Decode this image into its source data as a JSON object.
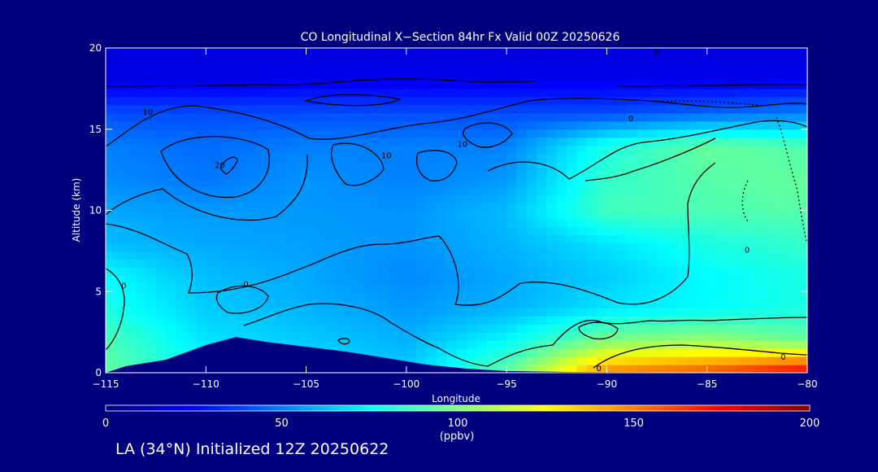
{
  "chart_data": {
    "type": "heatmap",
    "title": "CO Longitudinal X−Section 84hr  Fx Valid 00Z 20250626",
    "xlabel": "Longitude",
    "ylabel": "Altitude (km)",
    "xlim": [
      -115,
      -80
    ],
    "ylim": [
      0,
      20
    ],
    "x_ticks": [
      -115,
      -110,
      -105,
      -100,
      -95,
      -90,
      -85,
      -80
    ],
    "x_tick_labels": [
      "−115",
      "−110",
      "−105",
      "−100",
      "−95",
      "−90",
      "−85",
      "−80"
    ],
    "y_ticks": [
      0,
      5,
      10,
      15,
      20
    ],
    "y_tick_labels": [
      "0",
      "5",
      "10",
      "15",
      "20"
    ],
    "colorbar": {
      "label": "(ppbv)",
      "range": [
        0,
        200
      ],
      "ticks": [
        0,
        50,
        100,
        150,
        200
      ],
      "tick_labels": [
        "0",
        "50",
        "100",
        "150",
        "200"
      ]
    },
    "terrain_km": [
      {
        "lon": -115,
        "alt": 0.0
      },
      {
        "lon": -114,
        "alt": 0.4
      },
      {
        "lon": -112,
        "alt": 0.8
      },
      {
        "lon": -110,
        "alt": 1.7
      },
      {
        "lon": -108.5,
        "alt": 2.2
      },
      {
        "lon": -107,
        "alt": 1.9
      },
      {
        "lon": -105,
        "alt": 1.6
      },
      {
        "lon": -103,
        "alt": 1.3
      },
      {
        "lon": -101,
        "alt": 0.9
      },
      {
        "lon": -99,
        "alt": 0.5
      },
      {
        "lon": -97,
        "alt": 0.25
      },
      {
        "lon": -95,
        "alt": 0.1
      },
      {
        "lon": -92,
        "alt": 0.05
      },
      {
        "lon": -80,
        "alt": 0.0
      }
    ],
    "co_field_ppbv": {
      "x": [
        -115,
        -110,
        -105,
        -100,
        -95,
        -90,
        -85,
        -80
      ],
      "y": [
        0,
        2,
        4,
        6,
        8,
        10,
        12,
        14,
        16,
        18,
        20
      ],
      "z": [
        [
          95,
          75,
          70,
          65,
          95,
          150,
          160,
          180
        ],
        [
          90,
          70,
          65,
          60,
          75,
          100,
          105,
          95
        ],
        [
          80,
          65,
          60,
          55,
          60,
          70,
          75,
          80
        ],
        [
          75,
          62,
          58,
          52,
          58,
          65,
          75,
          80
        ],
        [
          62,
          58,
          56,
          54,
          60,
          70,
          80,
          85
        ],
        [
          58,
          55,
          55,
          54,
          62,
          88,
          90,
          92
        ],
        [
          52,
          48,
          54,
          50,
          55,
          85,
          92,
          95
        ],
        [
          50,
          46,
          50,
          50,
          50,
          80,
          95,
          90
        ],
        [
          40,
          40,
          40,
          40,
          40,
          40,
          45,
          50
        ],
        [
          20,
          20,
          22,
          22,
          22,
          22,
          22,
          22
        ],
        [
          18,
          18,
          18,
          18,
          18,
          18,
          18,
          18
        ]
      ]
    },
    "contour_labels": [
      {
        "text": "10",
        "lon": -112.9,
        "alt": 16.1
      },
      {
        "text": "20",
        "lon": -109.3,
        "alt": 12.8
      },
      {
        "text": "10",
        "lon": -101.0,
        "alt": 13.4
      },
      {
        "text": "10",
        "lon": -97.2,
        "alt": 14.1
      },
      {
        "text": "0",
        "lon": -88.8,
        "alt": 15.7
      },
      {
        "text": "0",
        "lon": -83.0,
        "alt": 7.6
      },
      {
        "text": "0",
        "lon": -114.1,
        "alt": 5.4
      },
      {
        "text": "0",
        "lon": -108.0,
        "alt": 5.5
      },
      {
        "text": "0",
        "lon": -90.4,
        "alt": 0.3
      },
      {
        "text": "0",
        "lon": -81.2,
        "alt": 1.0
      },
      {
        "text": "0",
        "lon": -87.5,
        "alt": 19.8
      }
    ]
  },
  "footer": {
    "text": "LA (34°N) Initialized 12Z 20250622"
  }
}
